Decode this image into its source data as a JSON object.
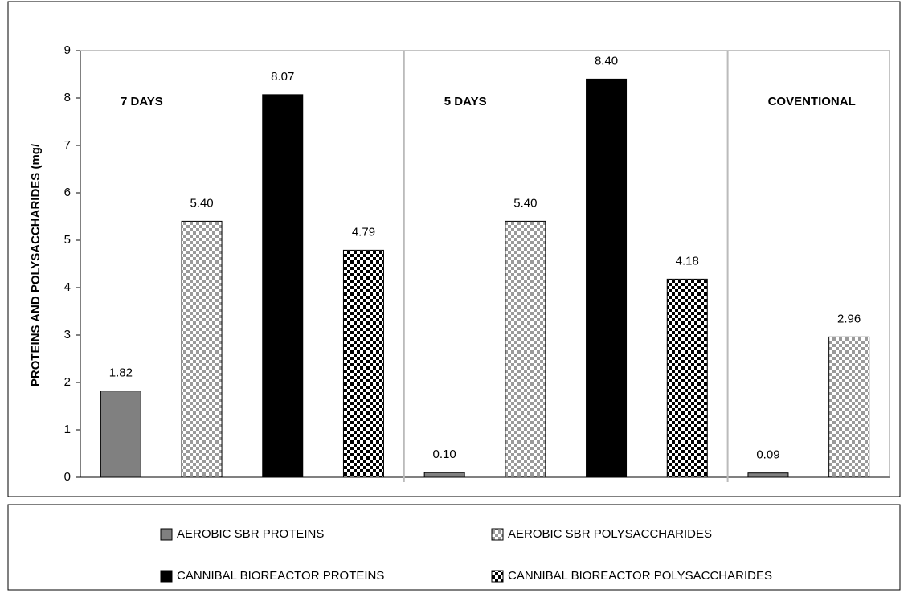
{
  "chart_data": {
    "type": "bar",
    "y_label": "PROTEINS AND POLYSACCHARIDES (mg/",
    "categories": [
      "7 DAYS",
      "5 DAYS",
      "COVENTIONAL"
    ],
    "series": [
      {
        "name": "AEROBIC SBR PROTEINS",
        "color": "#808080",
        "pattern": "solid",
        "values": [
          1.82,
          0.1,
          0.09
        ],
        "value_labels": [
          "1.82",
          "0.10",
          "0.09"
        ]
      },
      {
        "name": "AEROBIC SBR POLYSACCHARIDES",
        "color": "#9a9a9a",
        "pattern": "checker",
        "values": [
          5.4,
          5.4,
          2.96
        ],
        "value_labels": [
          "5.40",
          "5.40",
          "2.96"
        ]
      },
      {
        "name": "CANNIBAL BIOREACTOR PROTEINS",
        "color": "#000000",
        "pattern": "solid",
        "values": [
          8.07,
          8.4,
          null
        ],
        "value_labels": [
          "8.07",
          "8.40",
          null
        ]
      },
      {
        "name": "CANNIBAL BIOREACTOR POLYSACCHARIDES",
        "color": "#000000",
        "pattern": "checker",
        "values": [
          4.79,
          4.18,
          null
        ],
        "value_labels": [
          "4.79",
          "4.18",
          null
        ]
      }
    ],
    "ylim": [
      0,
      9
    ],
    "yticks": [
      0,
      1,
      2,
      3,
      4,
      5,
      6,
      7,
      8,
      9
    ]
  }
}
